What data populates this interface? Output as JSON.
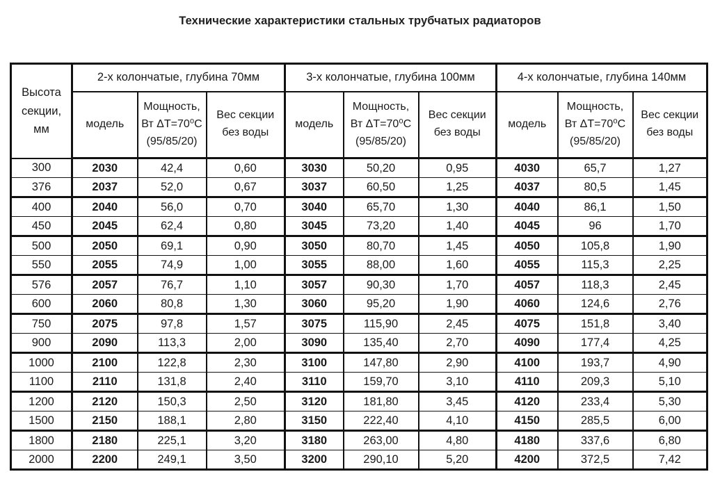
{
  "page": {
    "title": "Технические характеристики стальных трубчатых радиаторов"
  },
  "colors": {
    "border": "#111111",
    "text": "#1a1a1a",
    "background": "#ffffff"
  },
  "table": {
    "corner_header": "Высота\nсекции,\nмм",
    "groups": [
      {
        "label": "2-х колончатые, глубина 70мм"
      },
      {
        "label": "3-х колончатые, глубина 100мм"
      },
      {
        "label": "4-х колончатые, глубина 140мм"
      }
    ],
    "sub_headers": {
      "model": "модель",
      "power": "Мощность,\nВт ΔT=70⁰С\n(95/85/20)",
      "weight": "Вес секции\nбез воды"
    },
    "rows": [
      {
        "height": "300",
        "values": [
          "2030",
          "42,4",
          "0,60",
          "3030",
          "50,20",
          "0,95",
          "4030",
          "65,7",
          "1,27"
        ]
      },
      {
        "height": "376",
        "values": [
          "2037",
          "52,0",
          "0,67",
          "3037",
          "60,50",
          "1,25",
          "4037",
          "80,5",
          "1,45"
        ]
      },
      {
        "height": "400",
        "values": [
          "2040",
          "56,0",
          "0,70",
          "3040",
          "65,70",
          "1,30",
          "4040",
          "86,1",
          "1,50"
        ]
      },
      {
        "height": "450",
        "values": [
          "2045",
          "62,4",
          "0,80",
          "3045",
          "73,20",
          "1,40",
          "4045",
          "96",
          "1,70"
        ]
      },
      {
        "height": "500",
        "values": [
          "2050",
          "69,1",
          "0,90",
          "3050",
          "80,70",
          "1,45",
          "4050",
          "105,8",
          "1,90"
        ]
      },
      {
        "height": "550",
        "values": [
          "2055",
          "74,9",
          "1,00",
          "3055",
          "88,00",
          "1,60",
          "4055",
          "115,3",
          "2,25"
        ]
      },
      {
        "height": "576",
        "values": [
          "2057",
          "76,7",
          "1,10",
          "3057",
          "90,30",
          "1,70",
          "4057",
          "118,3",
          "2,45"
        ]
      },
      {
        "height": "600",
        "values": [
          "2060",
          "80,8",
          "1,30",
          "3060",
          "95,20",
          "1,90",
          "4060",
          "124,6",
          "2,76"
        ]
      },
      {
        "height": "750",
        "values": [
          "2075",
          "97,8",
          "1,57",
          "3075",
          "115,90",
          "2,45",
          "4075",
          "151,8",
          "3,40"
        ]
      },
      {
        "height": "900",
        "values": [
          "2090",
          "113,3",
          "2,00",
          "3090",
          "135,40",
          "2,70",
          "4090",
          "177,4",
          "4,25"
        ]
      },
      {
        "height": "1000",
        "values": [
          "2100",
          "122,8",
          "2,30",
          "3100",
          "147,80",
          "2,90",
          "4100",
          "193,7",
          "4,90"
        ]
      },
      {
        "height": "1100",
        "values": [
          "2110",
          "131,8",
          "2,40",
          "3110",
          "159,70",
          "3,10",
          "4110",
          "209,3",
          "5,10"
        ]
      },
      {
        "height": "1200",
        "values": [
          "2120",
          "150,3",
          "2,50",
          "3120",
          "181,80",
          "3,45",
          "4120",
          "233,4",
          "5,30"
        ]
      },
      {
        "height": "1500",
        "values": [
          "2150",
          "188,1",
          "2,80",
          "3150",
          "222,40",
          "4,10",
          "4150",
          "285,5",
          "6,00"
        ]
      },
      {
        "height": "1800",
        "values": [
          "2180",
          "225,1",
          "3,20",
          "3180",
          "263,00",
          "4,80",
          "4180",
          "337,6",
          "6,80"
        ]
      },
      {
        "height": "2000",
        "values": [
          "2200",
          "249,1",
          "3,50",
          "3200",
          "290,10",
          "5,20",
          "4200",
          "372,5",
          "7,42"
        ]
      }
    ]
  }
}
